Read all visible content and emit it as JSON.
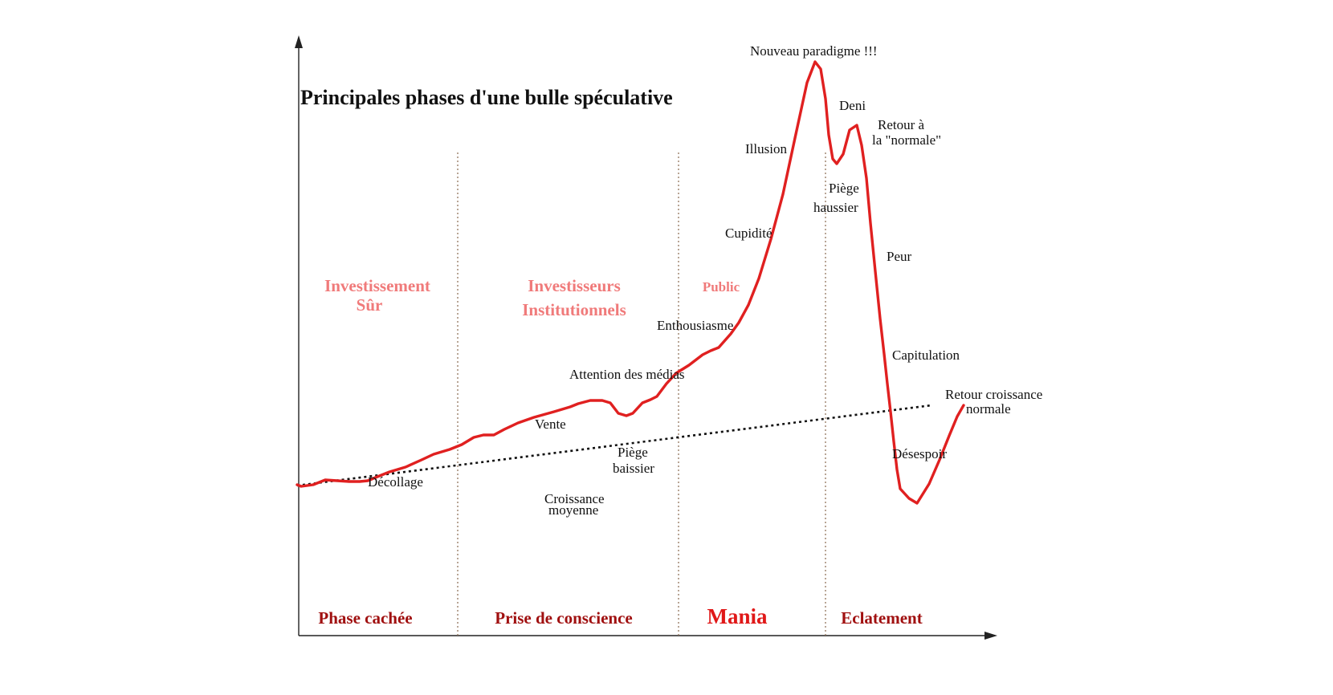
{
  "title": "Principales phases d'une bulle spéculative",
  "colors": {
    "axis": "#222222",
    "curve": "#e02020",
    "trend": "#111111",
    "separator": "#8a6a50",
    "phase_label": "#a01010",
    "investor_label": "#f07a7a",
    "text": "#111111"
  },
  "chart_data": {
    "type": "line",
    "series": [
      {
        "values": [
          [
            0,
            604
          ],
          [
            5,
            606
          ],
          [
            20,
            604
          ],
          [
            35,
            598
          ],
          [
            50,
            599
          ],
          [
            65,
            600
          ],
          [
            78,
            600
          ],
          [
            88,
            599
          ],
          [
            100,
            594
          ],
          [
            115,
            588
          ],
          [
            135,
            582
          ],
          [
            155,
            573
          ],
          [
            170,
            566
          ],
          [
            190,
            560
          ],
          [
            205,
            554
          ],
          [
            220,
            545
          ],
          [
            232,
            542
          ],
          [
            245,
            542
          ],
          [
            258,
            535
          ],
          [
            275,
            527
          ],
          [
            295,
            520
          ],
          [
            320,
            513
          ],
          [
            340,
            507
          ],
          [
            350,
            503
          ],
          [
            365,
            499
          ],
          [
            380,
            499
          ],
          [
            390,
            502
          ],
          [
            400,
            515
          ],
          [
            410,
            518
          ],
          [
            418,
            515
          ],
          [
            430,
            502
          ],
          [
            440,
            498
          ],
          [
            448,
            494
          ],
          [
            460,
            478
          ],
          [
            472,
            465
          ],
          [
            488,
            455
          ],
          [
            505,
            442
          ],
          [
            515,
            437
          ],
          [
            525,
            433
          ],
          [
            540,
            416
          ],
          [
            550,
            402
          ],
          [
            562,
            380
          ],
          [
            575,
            347
          ],
          [
            590,
            298
          ],
          [
            605,
            242
          ],
          [
            620,
            172
          ],
          [
            635,
            103
          ],
          [
            645,
            77
          ],
          [
            652,
            86
          ],
          [
            658,
            123
          ],
          [
            662,
            168
          ],
          [
            667,
            198
          ],
          [
            672,
            204
          ],
          [
            680,
            192
          ],
          [
            688,
            162
          ],
          [
            697,
            156
          ],
          [
            703,
            181
          ],
          [
            709,
            222
          ],
          [
            714,
            278
          ],
          [
            720,
            338
          ],
          [
            726,
            397
          ],
          [
            731,
            441
          ],
          [
            735,
            478
          ],
          [
            739,
            513
          ],
          [
            743,
            550
          ],
          [
            747,
            585
          ],
          [
            751,
            609
          ],
          [
            762,
            621
          ],
          [
            772,
            627
          ],
          [
            787,
            603
          ],
          [
            800,
            573
          ],
          [
            812,
            543
          ],
          [
            822,
            519
          ],
          [
            830,
            505
          ]
        ]
      },
      {
        "values": [
          [
            0,
            605
          ],
          [
            790,
            505
          ]
        ]
      }
    ],
    "annotations": [
      {
        "text": "Nouveau paradigme !!!"
      },
      {
        "text": "Deni"
      },
      {
        "text": "Retour  à"
      },
      {
        "text": "la \"normale\""
      },
      {
        "text": "Illusion"
      },
      {
        "text": "Piège"
      },
      {
        "text": "haussier"
      },
      {
        "text": "Cupidité"
      },
      {
        "text": "Peur"
      },
      {
        "text": "Enthousiasme"
      },
      {
        "text": "Capitulation"
      },
      {
        "text": "Attention des médias"
      },
      {
        "text": "Retour croissance"
      },
      {
        "text": "normale"
      },
      {
        "text": "Vente"
      },
      {
        "text": "Piège"
      },
      {
        "text": "baissier"
      },
      {
        "text": "Désespoir"
      },
      {
        "text": "Décollage"
      },
      {
        "text": "Croissance"
      },
      {
        "text": "moyenne"
      }
    ],
    "investor_labels": [
      {
        "text": "Investissement"
      },
      {
        "text": "Sûr"
      },
      {
        "text": "Investisseurs"
      },
      {
        "text": "Institutionnels"
      },
      {
        "text": "Public"
      }
    ],
    "phases": [
      {
        "text": "Phase cachée"
      },
      {
        "text": "Prise de conscience"
      },
      {
        "text": "Mania"
      },
      {
        "text": "Eclatement"
      }
    ]
  }
}
